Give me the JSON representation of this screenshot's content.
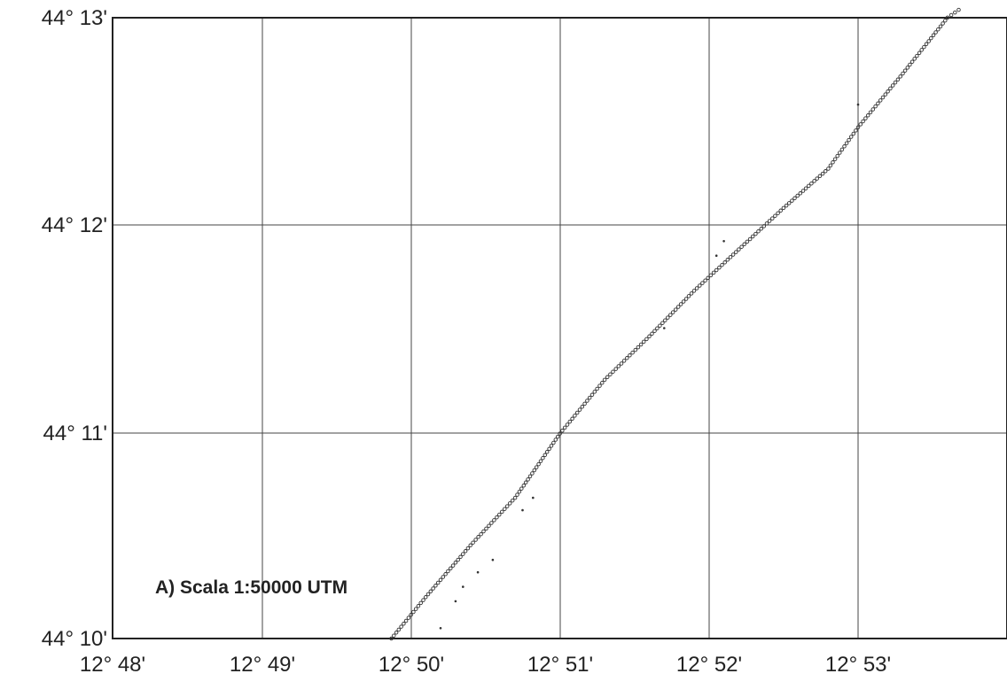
{
  "map": {
    "annotation": "A) Scala 1:50000 UTM",
    "x_ticks": [
      "12° 48'",
      "12° 49'",
      "12° 50'",
      "12° 51'",
      "12° 52'",
      "12° 53'"
    ],
    "y_ticks": [
      "44° 13'",
      "44° 12'",
      "44° 11'",
      "44° 10'"
    ],
    "x_range_min": [
      48.0,
      54.0
    ],
    "y_range_min": [
      10.0,
      13.05
    ],
    "track_color": "#333333",
    "grid_color": "#444444",
    "track_main": [
      [
        49.87,
        10.0
      ],
      [
        50.1,
        10.2
      ],
      [
        50.4,
        10.45
      ],
      [
        50.7,
        10.68
      ],
      [
        51.0,
        10.99
      ],
      [
        51.3,
        11.25
      ],
      [
        51.6,
        11.46
      ],
      [
        51.9,
        11.68
      ],
      [
        52.2,
        11.88
      ],
      [
        52.5,
        12.08
      ],
      [
        52.8,
        12.27
      ],
      [
        53.0,
        12.47
      ],
      [
        53.3,
        12.73
      ],
      [
        53.6,
        13.0
      ],
      [
        53.7,
        13.05
      ]
    ],
    "track_scatter": [
      [
        50.2,
        10.05
      ],
      [
        50.3,
        10.18
      ],
      [
        50.35,
        10.25
      ],
      [
        50.45,
        10.32
      ],
      [
        50.55,
        10.38
      ],
      [
        50.75,
        10.62
      ],
      [
        50.82,
        10.68
      ],
      [
        51.7,
        11.5
      ],
      [
        52.05,
        11.85
      ],
      [
        52.1,
        11.92
      ],
      [
        53.0,
        12.58
      ]
    ]
  }
}
